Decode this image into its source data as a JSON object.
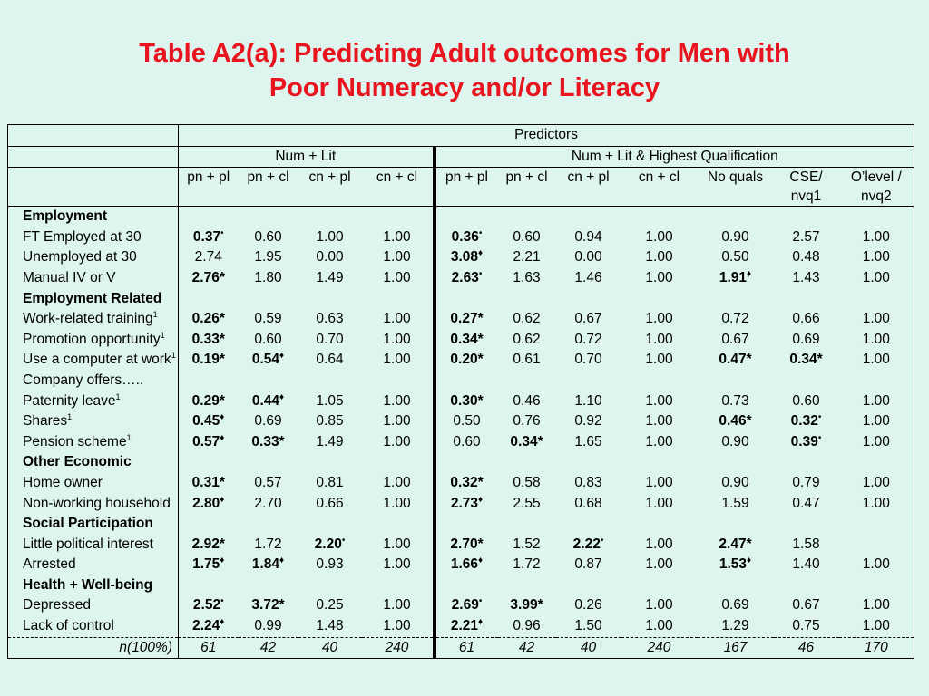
{
  "title_line1": "Table A2(a): Predicting Adult outcomes for Men with",
  "title_line2": "Poor Numeracy and/or Literacy",
  "header": {
    "predictors": "Predictors",
    "group1": "Num + Lit",
    "group2": "Num + Lit & Highest Qualification",
    "columns": [
      "pn + pl",
      "pn + cl",
      "cn + pl",
      "cn + cl",
      "pn + pl",
      "pn + cl",
      "cn + pl",
      "cn + cl",
      "No quals",
      "CSE/",
      "O’level /"
    ],
    "columns_line2": [
      "",
      "",
      "",
      "",
      "",
      "",
      "",
      "",
      "",
      "nvq1",
      "nvq2"
    ]
  },
  "rows": [
    {
      "section": "Employment"
    },
    {
      "label": "FT Employed at 30",
      "values": [
        [
          "0.37",
          "b",
          "•"
        ],
        [
          "0.60"
        ],
        [
          "1.00"
        ],
        [
          "1.00"
        ],
        [
          "0.36",
          "b",
          "•"
        ],
        [
          "0.60"
        ],
        [
          "0.94"
        ],
        [
          "1.00"
        ],
        [
          "0.90"
        ],
        [
          "2.57"
        ],
        [
          "1.00"
        ]
      ]
    },
    {
      "label": "Unemployed at 30",
      "values": [
        [
          "2.74"
        ],
        [
          "1.95"
        ],
        [
          "0.00"
        ],
        [
          "1.00"
        ],
        [
          "3.08",
          "b",
          "♦"
        ],
        [
          "2.21"
        ],
        [
          "0.00"
        ],
        [
          "1.00"
        ],
        [
          "0.50"
        ],
        [
          "0.48"
        ],
        [
          "1.00"
        ]
      ]
    },
    {
      "label": "Manual IV or V",
      "values": [
        [
          "2.76",
          "b",
          "*"
        ],
        [
          "1.80"
        ],
        [
          "1.49"
        ],
        [
          "1.00"
        ],
        [
          "2.63",
          "b",
          "•"
        ],
        [
          "1.63"
        ],
        [
          "1.46"
        ],
        [
          "1.00"
        ],
        [
          "1.91",
          "b",
          "♦"
        ],
        [
          "1.43"
        ],
        [
          "1.00"
        ]
      ]
    },
    {
      "section": "Employment Related"
    },
    {
      "label": "Work-related training",
      "sup": "1",
      "values": [
        [
          "0.26",
          "b",
          "*"
        ],
        [
          "0.59"
        ],
        [
          "0.63"
        ],
        [
          "1.00"
        ],
        [
          "0.27",
          "b",
          "*"
        ],
        [
          "0.62"
        ],
        [
          "0.67"
        ],
        [
          "1.00"
        ],
        [
          "0.72"
        ],
        [
          "0.66"
        ],
        [
          "1.00"
        ]
      ]
    },
    {
      "label": "Promotion opportunity",
      "sup": "1",
      "values": [
        [
          "0.33",
          "b",
          "*"
        ],
        [
          "0.60"
        ],
        [
          "0.70"
        ],
        [
          "1.00"
        ],
        [
          "0.34",
          "b",
          "*"
        ],
        [
          "0.62"
        ],
        [
          "0.72"
        ],
        [
          "1.00"
        ],
        [
          "0.67"
        ],
        [
          "0.69"
        ],
        [
          "1.00"
        ]
      ]
    },
    {
      "label": "Use a computer at work",
      "sup": "1",
      "values": [
        [
          "0.19",
          "b",
          "*"
        ],
        [
          "0.54",
          "b",
          "♦"
        ],
        [
          "0.64"
        ],
        [
          "1.00"
        ],
        [
          "0.20",
          "b",
          "*"
        ],
        [
          "0.61"
        ],
        [
          "0.70"
        ],
        [
          "1.00"
        ],
        [
          "0.47",
          "b",
          "*"
        ],
        [
          "0.34",
          "b",
          "*"
        ],
        [
          "1.00"
        ]
      ]
    },
    {
      "label": "Company offers…..",
      "values": []
    },
    {
      "label": "Paternity leave",
      "sup": "1",
      "values": [
        [
          "0.29",
          "b",
          "*"
        ],
        [
          "0.44",
          "b",
          "♦"
        ],
        [
          "1.05"
        ],
        [
          "1.00"
        ],
        [
          "0.30",
          "b",
          "*"
        ],
        [
          "0.46"
        ],
        [
          "1.10"
        ],
        [
          "1.00"
        ],
        [
          "0.73"
        ],
        [
          "0.60"
        ],
        [
          "1.00"
        ]
      ]
    },
    {
      "label": "Shares",
      "sup": "1",
      "values": [
        [
          "0.45",
          "b",
          "♦"
        ],
        [
          "0.69"
        ],
        [
          "0.85"
        ],
        [
          "1.00"
        ],
        [
          "0.50"
        ],
        [
          "0.76"
        ],
        [
          "0.92"
        ],
        [
          "1.00"
        ],
        [
          "0.46",
          "b",
          "*"
        ],
        [
          "0.32",
          "b",
          "•"
        ],
        [
          "1.00"
        ]
      ]
    },
    {
      "label": "Pension scheme",
      "sup": "1",
      "values": [
        [
          "0.57",
          "b",
          "♦"
        ],
        [
          "0.33",
          "b",
          "*"
        ],
        [
          "1.49"
        ],
        [
          "1.00"
        ],
        [
          "0.60"
        ],
        [
          "0.34",
          "b",
          "*"
        ],
        [
          "1.65"
        ],
        [
          "1.00"
        ],
        [
          "0.90"
        ],
        [
          "0.39",
          "b",
          "•"
        ],
        [
          "1.00"
        ]
      ]
    },
    {
      "section": "Other Economic"
    },
    {
      "label": "Home owner",
      "values": [
        [
          "0.31",
          "b",
          "*"
        ],
        [
          "0.57"
        ],
        [
          "0.81"
        ],
        [
          "1.00"
        ],
        [
          "0.32",
          "b",
          "*"
        ],
        [
          "0.58"
        ],
        [
          "0.83"
        ],
        [
          "1.00"
        ],
        [
          "0.90"
        ],
        [
          "0.79"
        ],
        [
          "1.00"
        ]
      ]
    },
    {
      "label": "Non-working household",
      "values": [
        [
          "2.80",
          "b",
          "♦"
        ],
        [
          "2.70"
        ],
        [
          "0.66"
        ],
        [
          "1.00"
        ],
        [
          "2.73",
          "b",
          "♦"
        ],
        [
          "2.55"
        ],
        [
          "0.68"
        ],
        [
          "1.00"
        ],
        [
          "1.59"
        ],
        [
          "0.47"
        ],
        [
          "1.00"
        ]
      ]
    },
    {
      "section": "Social Participation"
    },
    {
      "label": "Little political interest",
      "values": [
        [
          "2.92",
          "b",
          "*"
        ],
        [
          "1.72"
        ],
        [
          "2.20",
          "b",
          "•"
        ],
        [
          "1.00"
        ],
        [
          "2.70",
          "b",
          "*"
        ],
        [
          "1.52"
        ],
        [
          "2.22",
          "b",
          "•"
        ],
        [
          "1.00"
        ],
        [
          "2.47",
          "b",
          "*"
        ],
        [
          "1.58"
        ],
        [
          ""
        ]
      ]
    },
    {
      "label": "Arrested",
      "values": [
        [
          "1.75",
          "b",
          "♦"
        ],
        [
          "1.84",
          "b",
          "♦"
        ],
        [
          "0.93"
        ],
        [
          "1.00"
        ],
        [
          "1.66",
          "b",
          "♦"
        ],
        [
          "1.72"
        ],
        [
          "0.87"
        ],
        [
          "1.00"
        ],
        [
          "1.53",
          "b",
          "♦"
        ],
        [
          "1.40"
        ],
        [
          "1.00"
        ]
      ]
    },
    {
      "section": "Health + Well-being"
    },
    {
      "label": "Depressed",
      "values": [
        [
          "2.52",
          "b",
          "•"
        ],
        [
          "3.72",
          "b",
          "*"
        ],
        [
          "0.25"
        ],
        [
          "1.00"
        ],
        [
          "2.69",
          "b",
          "•"
        ],
        [
          "3.99",
          "b",
          "*"
        ],
        [
          "0.26"
        ],
        [
          "1.00"
        ],
        [
          "0.69"
        ],
        [
          "0.67"
        ],
        [
          "1.00"
        ]
      ]
    },
    {
      "label": "Lack of control",
      "values": [
        [
          "2.24",
          "b",
          "♦"
        ],
        [
          "0.99"
        ],
        [
          "1.48"
        ],
        [
          "1.00"
        ],
        [
          "2.21",
          "b",
          "♦"
        ],
        [
          "0.96"
        ],
        [
          "1.50"
        ],
        [
          "1.00"
        ],
        [
          "1.29"
        ],
        [
          "0.75"
        ],
        [
          "1.00"
        ]
      ]
    }
  ],
  "n_row": {
    "label": "n(100%)",
    "values": [
      "61",
      "42",
      "40",
      "240",
      "61",
      "42",
      "40",
      "240",
      "167",
      "46",
      "170"
    ]
  }
}
